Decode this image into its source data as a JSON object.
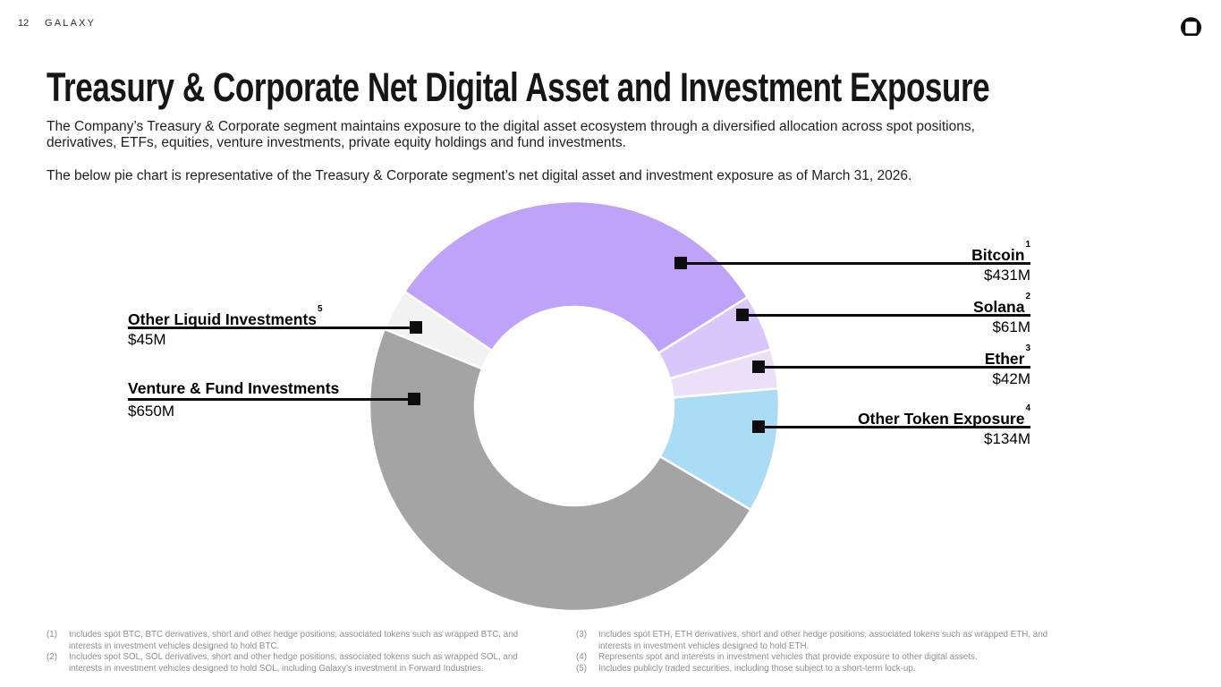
{
  "header": {
    "page_number": "12",
    "brand": "GALAXY",
    "logo_icon": "galaxy-logo-icon"
  },
  "title": "Treasury & Corporate Net Digital Asset and Investment Exposure",
  "intro": {
    "paragraph1": "The Company’s Treasury & Corporate segment maintains exposure to the digital asset ecosystem through a diversified allocation across spot positions, derivatives, ETFs, equities, venture investments, private equity holdings and fund investments.",
    "paragraph2": "The below pie chart is representative of the Treasury & Corporate segment’s net digital asset and investment exposure as of March 31, 2026."
  },
  "chart_data": {
    "type": "pie",
    "subtype": "donut",
    "title": "Treasury & Corporate segment net digital asset and investment exposure as of March 31, 2026",
    "unit": "USD millions",
    "legend_position": "callouts",
    "segments": [
      {
        "label": "Bitcoin",
        "footnote_ref": "1",
        "value": 431,
        "value_label": "$431M",
        "color": "#bfa3f9",
        "side": "right"
      },
      {
        "label": "Solana",
        "footnote_ref": "2",
        "value": 61,
        "value_label": "$61M",
        "color": "#d9c6fa",
        "side": "right"
      },
      {
        "label": "Ether",
        "footnote_ref": "3",
        "value": 42,
        "value_label": "$42M",
        "color": "#ebdffa",
        "side": "right"
      },
      {
        "label": "Other Token Exposure",
        "footnote_ref": "4",
        "value": 134,
        "value_label": "$134M",
        "color": "#abdcf6",
        "side": "right"
      },
      {
        "label": "Venture & Fund Investments",
        "footnote_ref": "",
        "value": 650,
        "value_label": "$650M",
        "color": "#a4a4a4",
        "side": "left"
      },
      {
        "label": "Other Liquid Investments",
        "footnote_ref": "5",
        "value": 45,
        "value_label": "$45M",
        "color": "#f2f2f2",
        "side": "left"
      }
    ],
    "total": 1363,
    "layout_hints": {
      "start_angle_deg": -56,
      "clockwise": true,
      "gap_color": "#ffffff"
    }
  },
  "footnotes": {
    "left": [
      {
        "num": "(1)",
        "text": "Includes spot BTC, BTC derivatives, short and other hedge positions, associated tokens such as wrapped BTC, and interests in investment vehicles designed to hold BTC."
      },
      {
        "num": "(2)",
        "text": "Includes spot SOL, SOL derivatives, short and other hedge positions, associated tokens such as wrapped SOL, and interests in investment vehicles designed to hold SOL, including Galaxy’s investment in Forward Industries."
      }
    ],
    "right": [
      {
        "num": "(3)",
        "text": "Includes spot ETH, ETH derivatives, short and other hedge positions, associated tokens such as wrapped ETH, and interests in investment vehicles designed to hold ETH."
      },
      {
        "num": "(4)",
        "text": "Represents spot and interests in investment vehicles that provide exposure to other digital assets."
      },
      {
        "num": "(5)",
        "text": "Includes publicly traded securities, including those subject to a short-term lock-up."
      }
    ]
  }
}
